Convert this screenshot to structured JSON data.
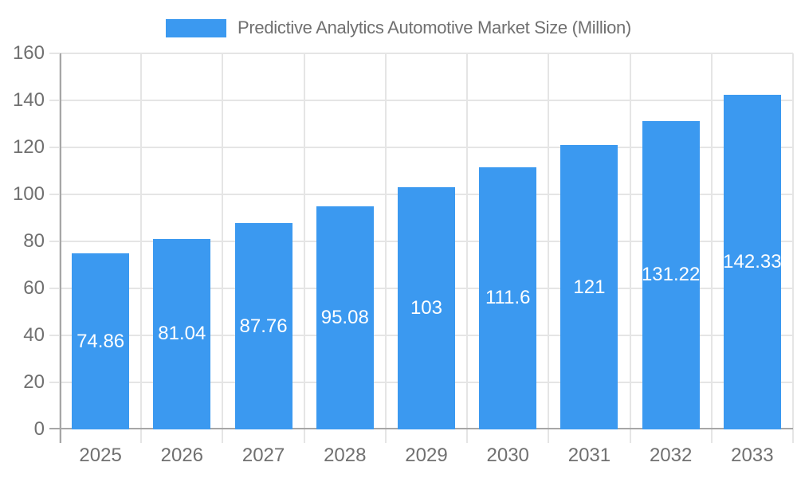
{
  "chart_data": {
    "type": "bar",
    "title": "Predictive Analytics Automotive Market Size (Million)",
    "categories": [
      "2025",
      "2026",
      "2027",
      "2028",
      "2029",
      "2030",
      "2031",
      "2032",
      "2033"
    ],
    "series": [
      {
        "name": "Predictive Analytics Automotive Market Size (Million)",
        "values": [
          74.86,
          81.04,
          87.76,
          95.08,
          103,
          111.6,
          121,
          131.22,
          142.33
        ]
      }
    ],
    "xlabel": "",
    "ylabel": "",
    "ylim": [
      0,
      160
    ],
    "ytick_step": 20,
    "yticks": [
      0,
      20,
      40,
      60,
      80,
      100,
      120,
      140,
      160
    ],
    "grid": true,
    "legend_position": "top",
    "value_labels_inside_bars": true,
    "colors": {
      "bar": "#3B99F0",
      "text": "#707070",
      "grid": "#e5e5e5",
      "axis": "#a6a6a6",
      "bar_label": "#ffffff",
      "background": "#ffffff"
    }
  }
}
